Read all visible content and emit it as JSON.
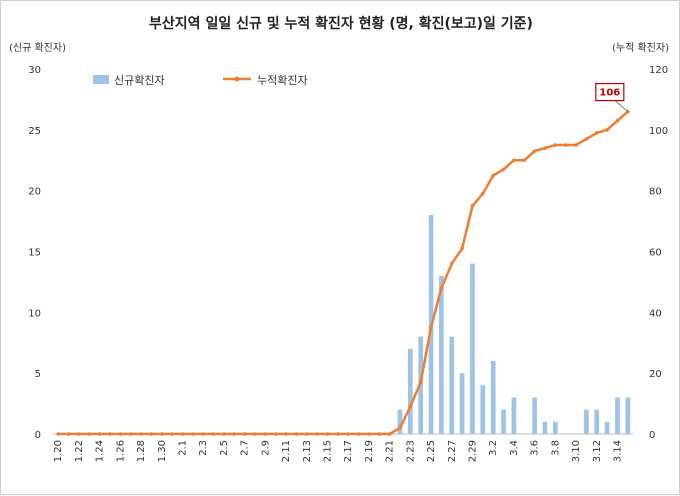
{
  "chart_data": {
    "type": "bar+line",
    "title": "부산지역 일일 신규 및 누적 확진자 현황 (명, 확진(보고)일 기준)",
    "y_left_unit": "(신규 확진자)",
    "y_right_unit": "(누적 확진자)",
    "y_left_ylim": [
      0,
      30
    ],
    "y_left_ticks": [
      0,
      5,
      10,
      15,
      20,
      25,
      30
    ],
    "y_right_ylim": [
      0,
      120
    ],
    "y_right_ticks": [
      0,
      20,
      40,
      60,
      80,
      100,
      120
    ],
    "x": [
      "1.20",
      "1.21",
      "1.22",
      "1.23",
      "1.24",
      "1.25",
      "1.26",
      "1.27",
      "1.28",
      "1.29",
      "1.30",
      "1.31",
      "2.1",
      "2.2",
      "2.3",
      "2.4",
      "2.5",
      "2.6",
      "2.7",
      "2.8",
      "2.9",
      "2.10",
      "2.11",
      "2.12",
      "2.13",
      "2.14",
      "2.15",
      "2.16",
      "2.17",
      "2.18",
      "2.19",
      "2.20",
      "2.21",
      "2.22",
      "2.23",
      "2.24",
      "2.25",
      "2.26",
      "2.27",
      "2.28",
      "2.29",
      "3.1",
      "3.2",
      "3.3",
      "3.4",
      "3.5",
      "3.6",
      "3.7",
      "3.8",
      "3.9",
      "3.10",
      "3.11",
      "3.12",
      "3.13",
      "3.14",
      "3.15"
    ],
    "x_tick_labels": [
      "1.20",
      "1.22",
      "1.24",
      "1.26",
      "1.28",
      "1.30",
      "2.1",
      "2.3",
      "2.5",
      "2.7",
      "2.9",
      "2.11",
      "2.13",
      "2.15",
      "2.17",
      "2.19",
      "2.21",
      "2.23",
      "2.25",
      "2.27",
      "2.29",
      "3.2",
      "3.4",
      "3.6",
      "3.8",
      "3.10",
      "3.12",
      "3.14"
    ],
    "series": [
      {
        "name": "신규확진자",
        "kind": "bar",
        "axis": "left",
        "color": "#9dc3e6",
        "values": [
          0,
          0,
          0,
          0,
          0,
          0,
          0,
          0,
          0,
          0,
          0,
          0,
          0,
          0,
          0,
          0,
          0,
          0,
          0,
          0,
          0,
          0,
          0,
          0,
          0,
          0,
          0,
          0,
          0,
          0,
          0,
          0,
          0,
          2,
          7,
          8,
          18,
          13,
          8,
          5,
          14,
          4,
          6,
          2,
          3,
          0,
          3,
          1,
          1,
          0,
          0,
          2,
          2,
          1,
          3,
          3
        ]
      },
      {
        "name": "누적확진자",
        "kind": "line",
        "axis": "right",
        "color": "#ed7d31",
        "values": [
          0,
          0,
          0,
          0,
          0,
          0,
          0,
          0,
          0,
          0,
          0,
          0,
          0,
          0,
          0,
          0,
          0,
          0,
          0,
          0,
          0,
          0,
          0,
          0,
          0,
          0,
          0,
          0,
          0,
          0,
          0,
          0,
          0,
          2,
          9,
          17,
          35,
          48,
          56,
          61,
          75,
          79,
          85,
          87,
          90,
          90,
          93,
          94,
          95,
          95,
          95,
          97,
          99,
          100,
          103,
          106
        ]
      }
    ],
    "annotation": {
      "text": "106",
      "x": "3.15",
      "y": 106,
      "color": "#c00000"
    },
    "legend_position": "top-left",
    "grid": false
  }
}
